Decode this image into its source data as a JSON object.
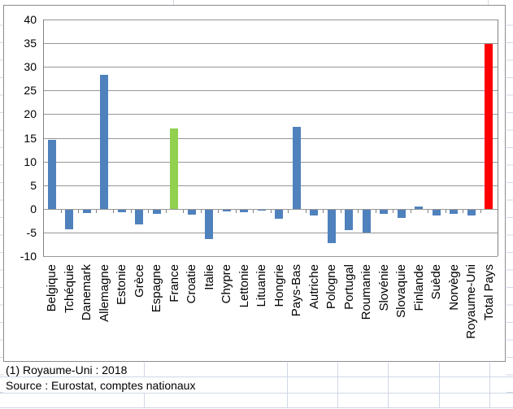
{
  "chart_data": {
    "type": "bar",
    "title": "",
    "xlabel": "",
    "ylabel": "",
    "categories": [
      "Belgique",
      "Tchéquie",
      "Danemark",
      "Allemagne",
      "Estonie",
      "Grèce",
      "Espagne",
      "France",
      "Croatie",
      "Italie",
      "Chypre",
      "Lettonie",
      "Lituanie",
      "Hongrie",
      "Pays-Bas",
      "Autriche",
      "Pologne",
      "Portugal",
      "Roumanie",
      "Slovénie",
      "Slovaquie",
      "Finlande",
      "Suède",
      "Norvège",
      "Royaume-Uni",
      "Total Pays"
    ],
    "values": [
      14.6,
      -4.1,
      -0.7,
      28.4,
      -0.5,
      -3.1,
      -0.9,
      17.0,
      -1.1,
      -6.2,
      -0.4,
      -0.6,
      -0.1,
      -2.0,
      17.3,
      -1.3,
      -7.0,
      -4.3,
      -4.9,
      -0.9,
      -1.7,
      0.4,
      -1.3,
      -0.9,
      -1.3,
      34.8
    ],
    "ylim": [
      -10,
      40
    ],
    "yticks": [
      40,
      35,
      30,
      25,
      20,
      15,
      10,
      5,
      0,
      -5,
      -10
    ],
    "grid": true,
    "legend": "none",
    "default_color": "#4F81BD",
    "highlight_colors": {
      "France": "#92D050",
      "Total Pays": "#FF0000"
    }
  },
  "footnotes": {
    "note1": "(1) Royaume-Uni : 2018",
    "source": "Source : Eurostat, comptes nationaux"
  },
  "colors": {
    "bar_blue": "#4F81BD",
    "bar_green": "#92D050",
    "bar_red": "#FF0000",
    "gridline": "#969696",
    "axis": "#808080",
    "sheet_line": "#d0d7e5"
  }
}
